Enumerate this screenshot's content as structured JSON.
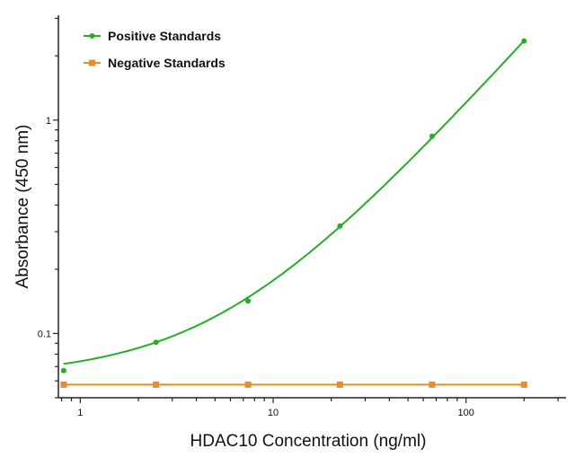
{
  "chart_data": {
    "type": "line",
    "title": "",
    "xlabel": "HDAC10 Concentration (ng/ml)",
    "ylabel": "Absorbance (450 nm)",
    "x_scale": "log",
    "y_scale": "log",
    "xlim": [
      0.77,
      330
    ],
    "ylim": [
      0.05,
      3.1
    ],
    "x_ticks": [
      {
        "value": 1,
        "label": "1"
      },
      {
        "value": 10,
        "label": "10"
      },
      {
        "value": 100,
        "label": "100"
      }
    ],
    "y_ticks": [
      {
        "value": 0.1,
        "label": "0.1"
      },
      {
        "value": 1,
        "label": "1"
      }
    ],
    "grid": false,
    "legend_position": "top-left",
    "series": [
      {
        "name": "Positive Standards",
        "color": "#22b022",
        "marker": "circle",
        "fit_curve": true,
        "x": [
          0.82,
          2.47,
          7.41,
          22.2,
          66.7,
          200
        ],
        "y": [
          0.067,
          0.091,
          0.142,
          0.319,
          0.84,
          2.35
        ]
      },
      {
        "name": "Negative Standards",
        "color": "#f08a24",
        "marker": "square",
        "fit_curve": false,
        "x": [
          0.82,
          2.47,
          7.41,
          22.2,
          66.7,
          200
        ],
        "y": [
          0.0576,
          0.0576,
          0.0576,
          0.0576,
          0.0576,
          0.0576
        ]
      }
    ]
  }
}
